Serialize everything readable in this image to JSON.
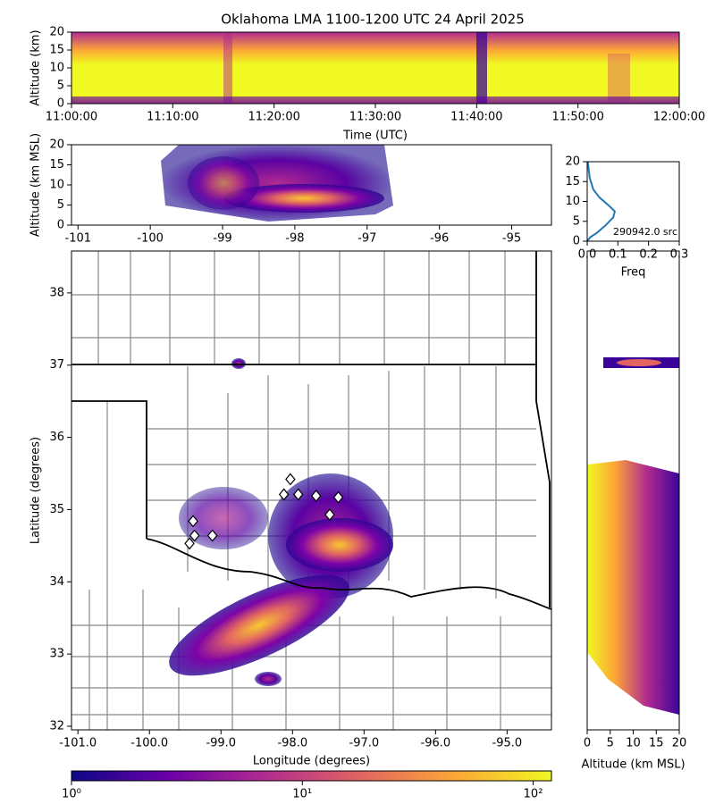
{
  "chart_data": [
    {
      "type": "density",
      "title": "Oklahoma LMA 1100-1200 UTC 24 April 2025",
      "xlabel": "Time (UTC)",
      "ylabel": "Altitude (km)",
      "xlim": [
        "11:00:00",
        "12:00:00"
      ],
      "xticks": [
        "11:00:00",
        "11:10:00",
        "11:20:00",
        "11:30:00",
        "11:40:00",
        "11:50:00",
        "12:00:00"
      ],
      "ylim": [
        0,
        20
      ],
      "yticks": [
        0,
        5,
        10,
        15,
        20
      ]
    },
    {
      "type": "density",
      "ylabel": "Altitude (km MSL)",
      "xlim": [
        -101.09,
        -94.45
      ],
      "xticks": [
        -101,
        -100,
        -99,
        -98,
        -97,
        -96,
        -95
      ],
      "ylim": [
        0,
        20
      ],
      "yticks": [
        0,
        5,
        10,
        15,
        20
      ]
    },
    {
      "type": "line",
      "xlabel": "Freq",
      "annotation": "290942.0 src",
      "color": "#1f77b4",
      "x": [
        0.0,
        0.01,
        0.03,
        0.06,
        0.085,
        0.09,
        0.07,
        0.04,
        0.02,
        0.008,
        0.002
      ],
      "y": [
        0,
        1,
        2,
        4,
        6,
        7.5,
        9,
        11,
        13,
        16,
        20
      ],
      "xlim": [
        0,
        0.3
      ],
      "xticks": [
        {
          "value": 0,
          "label": "0.0"
        },
        0.1,
        0.2,
        0.3
      ],
      "ylim": [
        0,
        20
      ],
      "yticks": [
        0,
        5,
        10,
        15,
        20
      ]
    },
    {
      "type": "scatter",
      "xlabel": "Longitude (degrees)",
      "ylabel": "Latitude (degrees)",
      "xlim": [
        -101.09,
        -94.38
      ],
      "xticks": [
        {
          "value": -101,
          "label": "-101.0"
        },
        {
          "value": -100,
          "label": "-100.0"
        },
        {
          "value": -99,
          "label": "-99.0"
        },
        {
          "value": -98,
          "label": "-98.0"
        },
        {
          "value": -97,
          "label": "-97.0"
        },
        {
          "value": -96,
          "label": "-96.0"
        },
        {
          "value": -95,
          "label": "-95.0"
        }
      ],
      "ylim": [
        31.95,
        38.58
      ],
      "yticks": [
        32,
        33,
        34,
        35,
        36,
        37,
        38
      ],
      "series": [
        {
          "color": "#ffffff",
          "x": [
            -99.39,
            -99.37,
            -99.44,
            -99.12,
            -98.03,
            -98.12,
            -97.92,
            -97.67,
            -97.36,
            -97.48
          ],
          "y": [
            34.84,
            34.64,
            34.53,
            34.64,
            35.42,
            35.21,
            35.21,
            35.19,
            35.17,
            34.93
          ]
        }
      ]
    },
    {
      "type": "density",
      "xlabel": "Altitude (km MSL)",
      "xlim": [
        0,
        20
      ],
      "xticks": [
        0,
        5,
        10,
        15,
        20
      ]
    },
    {
      "type": "colorbar",
      "log": true,
      "colors": [
        "#0d0887",
        "#6a00a8",
        "#b12a90",
        "#e16462",
        "#fca636",
        "#f0f921"
      ],
      "xlim": [
        1,
        120
      ],
      "xticks": [
        {
          "value": 1,
          "label": "10⁰"
        },
        {
          "value": 10,
          "label": "10¹"
        },
        {
          "value": 100,
          "label": "10²"
        }
      ]
    }
  ]
}
